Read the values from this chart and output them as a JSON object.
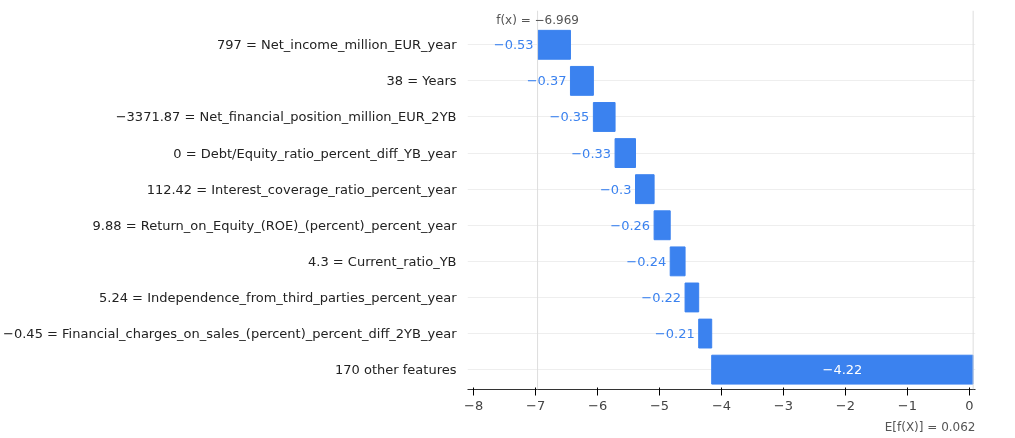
{
  "chart_data": {
    "type": "bar",
    "orientation": "horizontal",
    "categories": [
      "797 = Net_income_million_EUR_year",
      "38 = Years",
      "−3371.87 = Net_financial_position_million_EUR_2YB",
      "0 = Debt/Equity_ratio_percent_diff_YB_year",
      "112.42 = Interest_coverage_ratio_percent_year",
      "9.88 = Return_on_Equity_(ROE)_(percent)_percent_year",
      "4.3 = Current_ratio_YB",
      "5.24 = Independence_from_third_parties_percent_year",
      "−0.45 = Financial_charges_on_sales_(percent)_percent_diff_2YB_year",
      "170 other features"
    ],
    "values": [
      -0.53,
      -0.37,
      -0.35,
      -0.33,
      -0.3,
      -0.26,
      -0.24,
      -0.22,
      -0.21,
      -4.22
    ],
    "base": [
      -6.438,
      -6.068,
      -5.718,
      -5.388,
      -5.088,
      -4.828,
      -4.588,
      -4.368,
      -4.158,
      0.062
    ],
    "value_labels": [
      "−0.53",
      "−0.37",
      "−0.35",
      "−0.33",
      "−0.3",
      "−0.26",
      "−0.24",
      "−0.22",
      "−0.21",
      "−4.22"
    ],
    "color": "#3b82ef",
    "xlim": [
      -8.1,
      0.1
    ],
    "xticks": [
      {
        "value": -8,
        "label": "−8"
      },
      {
        "value": -7,
        "label": "−7"
      },
      {
        "value": -6,
        "label": "−6"
      },
      {
        "value": -5,
        "label": "−5"
      },
      {
        "value": -4,
        "label": "−4"
      },
      {
        "value": -3,
        "label": "−3"
      },
      {
        "value": -2,
        "label": "−2"
      },
      {
        "value": -1,
        "label": "−1"
      },
      0
    ],
    "ref_lines": [
      {
        "axis": "x",
        "value": -6.969,
        "label": "f(x) = −6.969"
      },
      {
        "axis": "x",
        "value": 0.062,
        "label": "E[f(X)] = 0.062"
      }
    ],
    "grid": "y"
  }
}
